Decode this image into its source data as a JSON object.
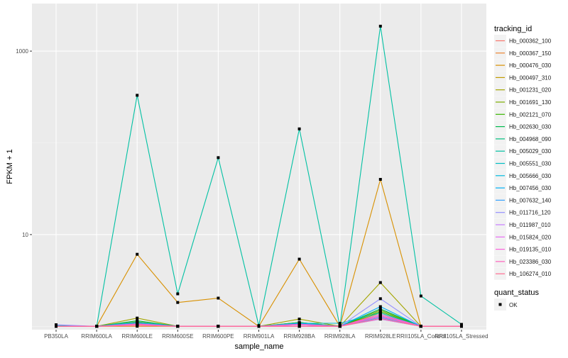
{
  "chart_data": {
    "type": "line",
    "title": "",
    "xlabel": "sample_name",
    "ylabel": "FPKM + 1",
    "yscale": "log10",
    "ylim": [
      0.92,
      3300
    ],
    "yticks": [
      10,
      1000
    ],
    "ytick_labels": [
      "10",
      "1000"
    ],
    "grid": true,
    "legend_position": "right",
    "categories": [
      "PB350LA",
      "RRIM600LA",
      "RRIM600LE",
      "RRIM600SE",
      "RRIM600PE",
      "RRIM901LA",
      "RRIM928BA",
      "RRIM928LA",
      "RRIM928LE",
      "RRII105LA_Control",
      "RRII105LA_Stressed"
    ],
    "legend_title": "tracking_id",
    "shape_legend_title": "quant_status",
    "shape_legend_items": [
      "OK"
    ],
    "series": [
      {
        "name": "Hb_000362_100",
        "color": "#F8766D",
        "values": [
          1,
          1,
          1.05,
          1,
          1,
          1,
          1.05,
          1,
          1.3,
          1,
          1
        ]
      },
      {
        "name": "Hb_000367_150",
        "color": "#EA8331",
        "values": [
          1,
          1,
          1,
          1,
          1,
          1,
          1,
          1,
          1.2,
          1,
          1
        ]
      },
      {
        "name": "Hb_000476_030",
        "color": "#D89000",
        "values": [
          1,
          1,
          6.1,
          1.82,
          2.03,
          1,
          5.4,
          1,
          40,
          1,
          1
        ]
      },
      {
        "name": "Hb_000497_310",
        "color": "#C09B00",
        "values": [
          1,
          1,
          1.1,
          1,
          1,
          1,
          1.1,
          1,
          1.4,
          1,
          1
        ]
      },
      {
        "name": "Hb_001231_020",
        "color": "#A3A500",
        "values": [
          1,
          1,
          1.23,
          1,
          1,
          1,
          1.2,
          1,
          3.0,
          1,
          1
        ]
      },
      {
        "name": "Hb_001691_130",
        "color": "#7CAE00",
        "values": [
          1,
          1,
          1.12,
          1,
          1,
          1,
          1.1,
          1,
          1.5,
          1,
          1
        ]
      },
      {
        "name": "Hb_002121_070",
        "color": "#39B600",
        "values": [
          1,
          1,
          1.08,
          1,
          1,
          1,
          1.07,
          1,
          1.45,
          1,
          1
        ]
      },
      {
        "name": "Hb_002630_030",
        "color": "#00BB4E",
        "values": [
          1,
          1,
          1.15,
          1,
          1,
          1,
          1.1,
          1,
          1.55,
          1,
          1
        ]
      },
      {
        "name": "Hb_004968_090",
        "color": "#00BF7D",
        "values": [
          1,
          1,
          1.05,
          1,
          1,
          1,
          1.05,
          1,
          1.35,
          1,
          1
        ]
      },
      {
        "name": "Hb_005029_030",
        "color": "#00C1A3",
        "values": [
          1.02,
          1,
          330,
          2.26,
          69,
          1.02,
          142,
          1,
          1870,
          2.14,
          1.05
        ]
      },
      {
        "name": "Hb_005551_030",
        "color": "#00BFC4",
        "values": [
          1,
          1,
          1.1,
          1,
          1,
          1,
          1.08,
          1.08,
          1.4,
          1,
          1
        ]
      },
      {
        "name": "Hb_005666_030",
        "color": "#00BAE0",
        "values": [
          1,
          1,
          1.06,
          1,
          1,
          1,
          1.06,
          1,
          1.3,
          1,
          1
        ]
      },
      {
        "name": "Hb_007456_030",
        "color": "#00B0F6",
        "values": [
          1,
          1,
          1.1,
          1,
          1,
          1,
          1.08,
          1,
          1.64,
          1,
          1
        ]
      },
      {
        "name": "Hb_007632_140",
        "color": "#35A2FF",
        "values": [
          1,
          1,
          1.04,
          1,
          1,
          1,
          1.04,
          1,
          1.25,
          1,
          1
        ]
      },
      {
        "name": "Hb_011716_120",
        "color": "#9590FF",
        "values": [
          1.04,
          1,
          1.07,
          1,
          1,
          1,
          1.06,
          1,
          2.0,
          1,
          1
        ]
      },
      {
        "name": "Hb_011987_010",
        "color": "#C77CFF",
        "values": [
          1,
          1,
          1.03,
          1,
          1,
          1,
          1,
          1,
          1.2,
          1,
          1
        ]
      },
      {
        "name": "Hb_015824_020",
        "color": "#E76BF3",
        "values": [
          1,
          1,
          1.05,
          1,
          1,
          1,
          1,
          1,
          1.28,
          1,
          1
        ]
      },
      {
        "name": "Hb_019135_010",
        "color": "#FA62DB",
        "values": [
          1,
          1,
          1.06,
          1,
          1,
          1,
          1.05,
          1,
          1.35,
          1,
          1
        ]
      },
      {
        "name": "Hb_023386_030",
        "color": "#FF62BC",
        "values": [
          1,
          1,
          1.04,
          1,
          1,
          1,
          1.04,
          1,
          1.3,
          1,
          1
        ]
      },
      {
        "name": "Hb_106274_010",
        "color": "#FF6C91",
        "values": [
          1,
          1,
          1.03,
          1,
          1,
          1,
          1,
          1,
          1.22,
          1,
          1
        ]
      }
    ]
  }
}
